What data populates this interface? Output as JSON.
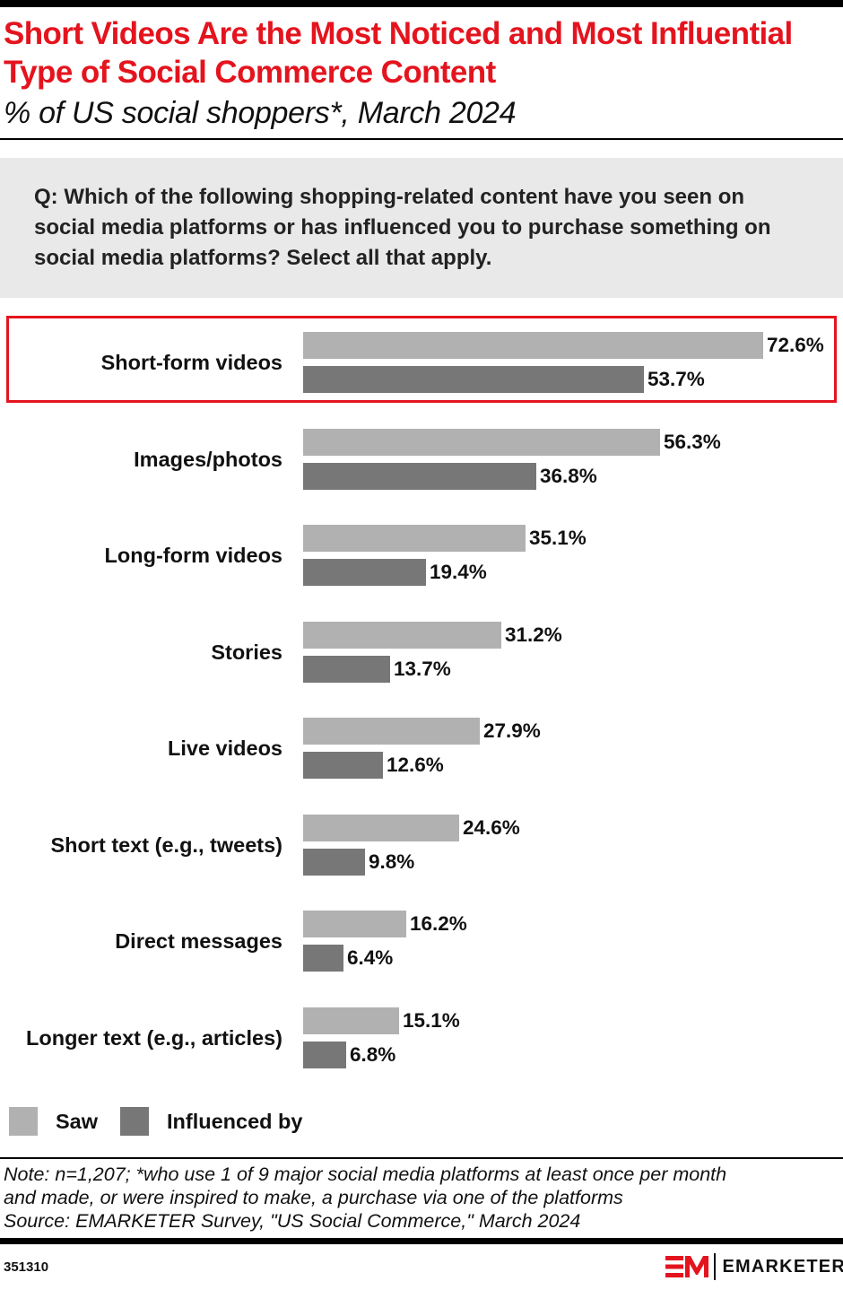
{
  "header": {
    "title": "Short Videos Are the Most Noticed and Most Influential Type of Social Commerce Content",
    "subtitle": "% of US social shoppers*, March 2024"
  },
  "question": "Q: Which of the following shopping-related content have you seen on social media platforms or has influenced you to purchase something on social media platforms? Select all that apply.",
  "colors": {
    "accent": "#e4141e",
    "saw": "#b1b1b1",
    "influenced_by": "#777777",
    "question_bg": "#e9e9e9"
  },
  "legend": {
    "items": [
      {
        "label": "Saw",
        "color": "#b1b1b1"
      },
      {
        "label": "Influenced by",
        "color": "#777777"
      }
    ]
  },
  "rows": [
    {
      "label": "Short-form videos",
      "saw": 72.6,
      "saw_label": "72.6%",
      "inf": 53.7,
      "inf_label": "53.7%"
    },
    {
      "label": "Images/photos",
      "saw": 56.3,
      "saw_label": "56.3%",
      "inf": 36.8,
      "inf_label": "36.8%"
    },
    {
      "label": "Long-form videos",
      "saw": 35.1,
      "saw_label": "35.1%",
      "inf": 19.4,
      "inf_label": "19.4%"
    },
    {
      "label": "Stories",
      "saw": 31.2,
      "saw_label": "31.2%",
      "inf": 13.7,
      "inf_label": "13.7%"
    },
    {
      "label": "Live videos",
      "saw": 27.9,
      "saw_label": "27.9%",
      "inf": 12.6,
      "inf_label": "12.6%"
    },
    {
      "label": "Short text (e.g., tweets)",
      "saw": 24.6,
      "saw_label": "24.6%",
      "inf": 9.8,
      "inf_label": "9.8%"
    },
    {
      "label": "Direct messages",
      "saw": 16.2,
      "saw_label": "16.2%",
      "inf": 6.4,
      "inf_label": "6.4%"
    },
    {
      "label": "Longer text (e.g., articles)",
      "saw": 15.1,
      "saw_label": "15.1%",
      "inf": 6.8,
      "inf_label": "6.8%"
    }
  ],
  "footer": {
    "note_line1": "Note: n=1,207; *who use 1 of 9 major social media platforms at least once per month",
    "note_line2": "and made, or were inspired to make, a purchase via one of the platforms",
    "source": "Source: EMARKETER Survey, \"US Social Commerce,\" March 2024",
    "chart_id": "351310",
    "logo_text": "EMARKETER"
  },
  "chart_data": {
    "type": "bar",
    "orientation": "horizontal",
    "title": "Short Videos Are the Most Noticed and Most Influential Type of Social Commerce Content",
    "subtitle": "% of US social shoppers*, March 2024",
    "categories": [
      "Short-form videos",
      "Images/photos",
      "Long-form videos",
      "Stories",
      "Live videos",
      "Short text (e.g., tweets)",
      "Direct messages",
      "Longer text (e.g., articles)"
    ],
    "series": [
      {
        "name": "Saw",
        "color": "#b1b1b1",
        "values": [
          72.6,
          56.3,
          35.1,
          31.2,
          27.9,
          24.6,
          16.2,
          15.1
        ]
      },
      {
        "name": "Influenced by",
        "color": "#777777",
        "values": [
          53.7,
          36.8,
          19.4,
          13.7,
          12.6,
          9.8,
          6.4,
          6.8
        ]
      }
    ],
    "xlabel": "",
    "ylabel": "",
    "unit": "%",
    "grid": false,
    "legend_position": "bottom-left",
    "highlighted_category": "Short-form videos"
  }
}
